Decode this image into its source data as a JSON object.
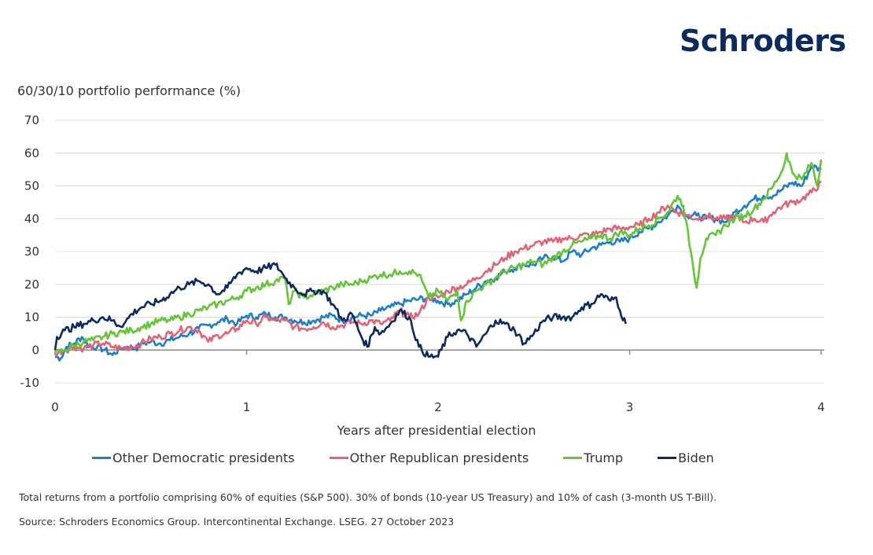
{
  "brand": {
    "logo_text": "Schroders"
  },
  "notes": {
    "description": "Total returns from a portfolio comprising  60% of equities (S&P 500). 30% of bonds (10-year US Treasury) and 10% of cash (3-month US T-Bill).",
    "source": "Source: Schroders Economics Group. Intercontinental Exchange. LSEG. 27 October 2023"
  },
  "chart_data": {
    "type": "line",
    "title": "",
    "ylabel": "60/30/10 portfolio performance (%)",
    "xlabel": "Years after presidential election",
    "xlim": [
      0,
      4
    ],
    "ylim": [
      -10,
      70
    ],
    "xticks": [
      0,
      1,
      2,
      3,
      4
    ],
    "yticks": [
      -10,
      0,
      10,
      20,
      30,
      40,
      50,
      60,
      70
    ],
    "grid": "horizontal",
    "legend": "bottom",
    "series": [
      {
        "name": "Other Democratic presidents",
        "color": "#1f7fc4",
        "x": [
          0,
          0.03,
          0.06,
          0.1,
          0.14,
          0.18,
          0.22,
          0.26,
          0.3,
          0.34,
          0.38,
          0.42,
          0.46,
          0.5,
          0.55,
          0.6,
          0.65,
          0.7,
          0.75,
          0.8,
          0.85,
          0.9,
          0.95,
          1.0,
          1.05,
          1.1,
          1.15,
          1.2,
          1.25,
          1.3,
          1.35,
          1.4,
          1.45,
          1.5,
          1.55,
          1.6,
          1.65,
          1.7,
          1.75,
          1.8,
          1.85,
          1.9,
          1.95,
          2.0,
          2.05,
          2.1,
          2.15,
          2.2,
          2.25,
          2.3,
          2.35,
          2.4,
          2.45,
          2.5,
          2.55,
          2.6,
          2.65,
          2.7,
          2.75,
          2.8,
          2.85,
          2.9,
          2.95,
          3.0,
          3.05,
          3.1,
          3.15,
          3.2,
          3.25,
          3.3,
          3.35,
          3.4,
          3.45,
          3.5,
          3.55,
          3.6,
          3.65,
          3.7,
          3.75,
          3.8,
          3.85,
          3.9,
          3.95,
          4.0
        ],
        "y": [
          -2,
          -2.5,
          1,
          2,
          4,
          1,
          1,
          0,
          -1.5,
          0.5,
          1,
          0.5,
          2,
          2.5,
          2,
          3,
          4,
          5,
          6.5,
          7.5,
          8.5,
          9.5,
          8,
          10.5,
          10,
          11,
          10,
          10,
          9,
          8.5,
          9,
          10,
          10.5,
          9,
          10,
          10.5,
          10.5,
          12,
          13,
          14,
          15,
          15.5,
          16,
          15,
          14,
          15,
          17,
          19,
          21,
          22,
          24,
          25,
          26,
          26,
          28,
          28.5,
          27,
          30,
          29,
          31,
          32,
          33,
          33,
          34,
          36,
          37,
          39,
          41,
          44,
          41,
          41,
          40,
          40,
          39,
          42,
          44,
          46,
          47,
          47,
          49,
          51,
          50,
          56,
          55
        ]
      },
      {
        "name": "Other Republican presidents",
        "color": "#e06476",
        "x": [
          0,
          0.05,
          0.1,
          0.15,
          0.2,
          0.25,
          0.3,
          0.35,
          0.4,
          0.45,
          0.5,
          0.55,
          0.6,
          0.65,
          0.7,
          0.75,
          0.8,
          0.85,
          0.9,
          0.95,
          1.0,
          1.05,
          1.1,
          1.15,
          1.2,
          1.25,
          1.3,
          1.35,
          1.4,
          1.45,
          1.5,
          1.55,
          1.6,
          1.65,
          1.7,
          1.75,
          1.8,
          1.85,
          1.9,
          1.95,
          2.0,
          2.05,
          2.1,
          2.15,
          2.2,
          2.25,
          2.3,
          2.35,
          2.4,
          2.45,
          2.5,
          2.55,
          2.6,
          2.65,
          2.7,
          2.75,
          2.8,
          2.85,
          2.9,
          2.95,
          3.0,
          3.05,
          3.1,
          3.15,
          3.2,
          3.25,
          3.3,
          3.35,
          3.4,
          3.45,
          3.5,
          3.55,
          3.6,
          3.65,
          3.7,
          3.75,
          3.8,
          3.85,
          3.9,
          3.95,
          4.0
        ],
        "y": [
          -1,
          0,
          1,
          0.5,
          1.5,
          2,
          1,
          0.5,
          1,
          2,
          3.5,
          4,
          5,
          6,
          7,
          6,
          2.5,
          4.5,
          5,
          6.5,
          9,
          8,
          10,
          9,
          9,
          7,
          6.5,
          7,
          8.5,
          7,
          7.5,
          8.5,
          8,
          9,
          8,
          9,
          12,
          10,
          11,
          16,
          16,
          18,
          19,
          20,
          22,
          24,
          26,
          28,
          30,
          31,
          32,
          33,
          33,
          34,
          34,
          35,
          35,
          36,
          37,
          37,
          37.5,
          38,
          40,
          42,
          44,
          42,
          41,
          40,
          41,
          40,
          40,
          41,
          39,
          40,
          39,
          42,
          44,
          45,
          46,
          48,
          51
        ]
      },
      {
        "name": "Trump",
        "color": "#66c43a",
        "x": [
          0,
          0.05,
          0.1,
          0.15,
          0.2,
          0.25,
          0.3,
          0.35,
          0.4,
          0.45,
          0.5,
          0.55,
          0.6,
          0.65,
          0.7,
          0.75,
          0.8,
          0.85,
          0.9,
          0.95,
          1.0,
          1.05,
          1.1,
          1.15,
          1.2,
          1.22,
          1.25,
          1.3,
          1.35,
          1.4,
          1.45,
          1.5,
          1.55,
          1.6,
          1.65,
          1.7,
          1.75,
          1.8,
          1.85,
          1.9,
          1.95,
          2.0,
          2.05,
          2.1,
          2.12,
          2.15,
          2.2,
          2.25,
          2.3,
          2.35,
          2.4,
          2.45,
          2.5,
          2.55,
          2.6,
          2.65,
          2.7,
          2.75,
          2.8,
          2.85,
          2.9,
          2.95,
          3.0,
          3.05,
          3.1,
          3.15,
          3.2,
          3.25,
          3.28,
          3.32,
          3.35,
          3.37,
          3.4,
          3.45,
          3.5,
          3.55,
          3.6,
          3.65,
          3.7,
          3.75,
          3.8,
          3.82,
          3.85,
          3.9,
          3.95,
          3.98,
          4.0
        ],
        "y": [
          -1,
          0,
          1.5,
          2.5,
          3,
          4,
          5,
          5.5,
          6,
          7,
          8,
          9,
          9,
          10,
          11,
          12,
          13,
          14,
          15,
          16,
          18,
          19,
          20,
          21,
          22,
          14,
          18,
          16,
          17,
          18,
          19,
          20,
          20,
          21,
          22,
          23,
          23,
          24,
          24,
          23,
          16,
          18,
          15,
          18,
          9,
          15,
          18,
          20,
          22,
          24,
          25,
          26,
          27,
          26,
          28,
          30,
          32,
          33,
          34,
          35,
          34,
          36,
          35,
          37,
          38,
          40,
          42,
          47,
          44,
          30,
          19,
          28,
          34,
          35,
          38,
          40,
          41,
          43,
          46,
          50,
          55,
          60,
          54,
          52,
          57,
          50,
          58
        ]
      },
      {
        "name": "Biden",
        "color": "#0d2a5c",
        "x": [
          0,
          0.01,
          0.05,
          0.1,
          0.15,
          0.2,
          0.25,
          0.3,
          0.33,
          0.36,
          0.4,
          0.45,
          0.5,
          0.55,
          0.6,
          0.65,
          0.7,
          0.75,
          0.8,
          0.85,
          0.9,
          0.95,
          1.0,
          1.05,
          1.1,
          1.15,
          1.18,
          1.2,
          1.25,
          1.3,
          1.35,
          1.4,
          1.45,
          1.5,
          1.55,
          1.6,
          1.63,
          1.67,
          1.7,
          1.75,
          1.8,
          1.85,
          1.9,
          1.95,
          2.0,
          2.05,
          2.1,
          2.15,
          2.2,
          2.25,
          2.3,
          2.35,
          2.4,
          2.45,
          2.5,
          2.55,
          2.6,
          2.65,
          2.7,
          2.75,
          2.8,
          2.85,
          2.9,
          2.93,
          2.95,
          2.98
        ],
        "y": [
          0,
          4,
          6,
          7,
          8,
          9,
          10,
          9,
          7.5,
          8,
          11,
          13,
          14,
          15,
          17,
          19,
          20,
          21,
          20,
          17,
          19,
          23,
          25,
          24,
          25,
          26,
          24,
          22,
          19,
          17,
          18,
          18,
          14,
          9,
          11,
          4,
          1,
          7,
          5,
          8,
          12,
          10,
          1,
          -2,
          -2,
          4,
          6,
          5,
          1,
          5,
          9,
          8,
          6,
          2,
          5,
          9,
          10,
          10,
          10,
          13,
          14,
          17,
          15,
          16,
          12,
          8
        ]
      }
    ]
  }
}
